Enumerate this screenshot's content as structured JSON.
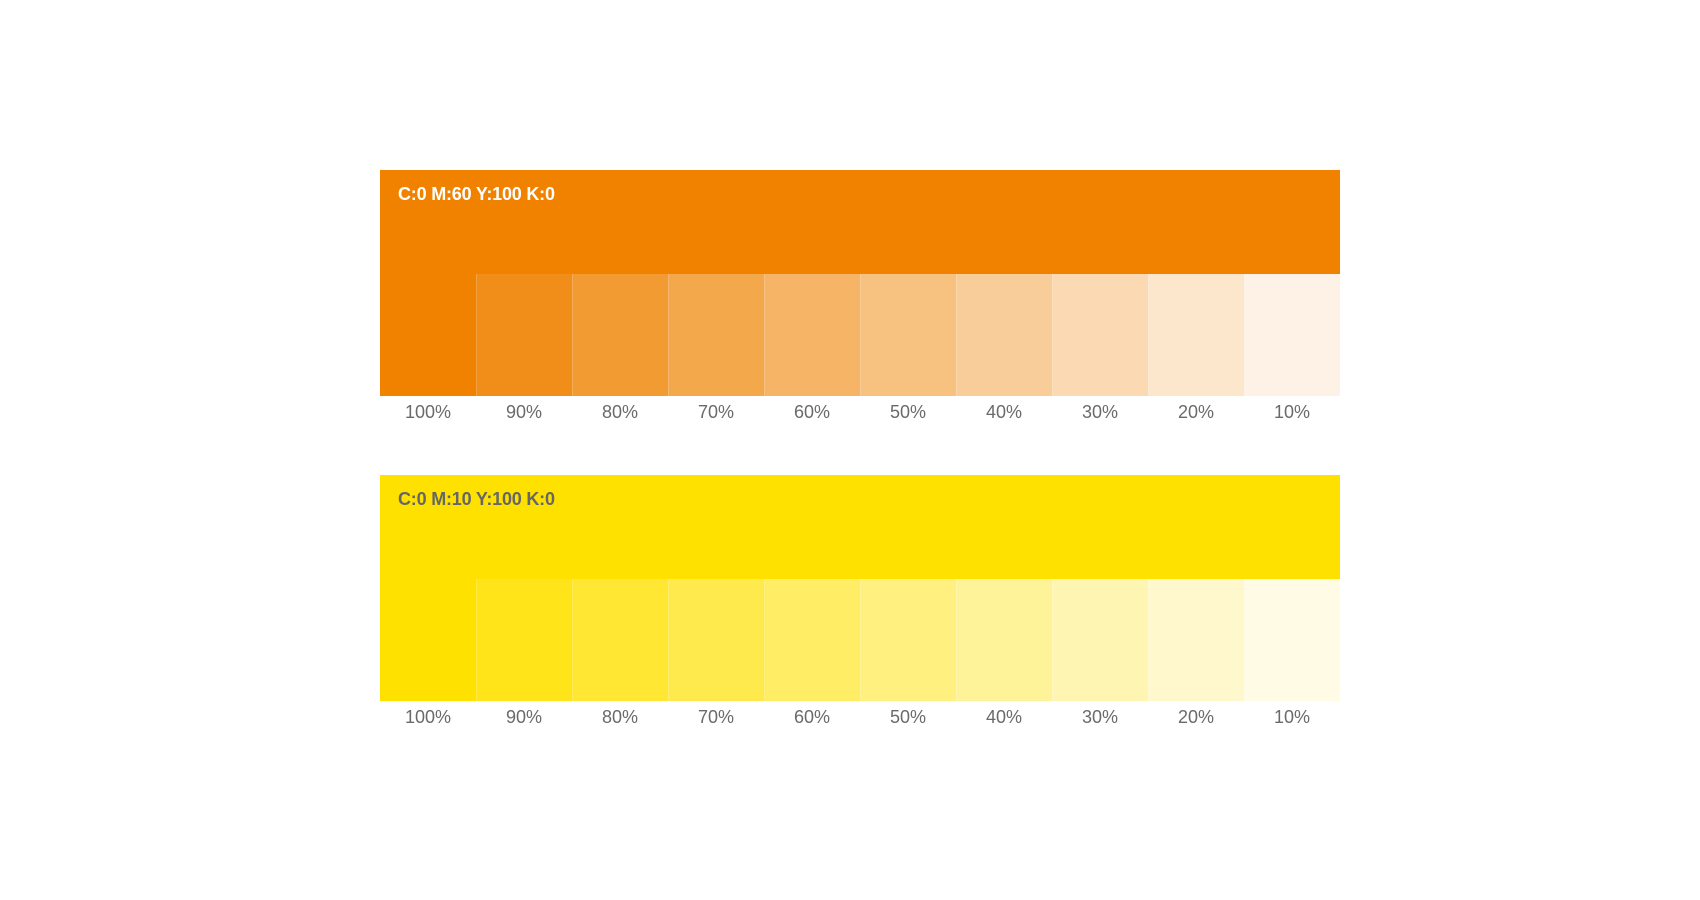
{
  "palettes": [
    {
      "id": "orange",
      "label": "C:0 M:60 Y:100 K:0",
      "base_color": "#F08200",
      "label_color": "#FFFFFF",
      "tints": [
        {
          "label": "100%",
          "color": "#F08200"
        },
        {
          "label": "90%",
          "color": "#F18E19"
        },
        {
          "label": "80%",
          "color": "#F39B33"
        },
        {
          "label": "70%",
          "color": "#F4A84C"
        },
        {
          "label": "60%",
          "color": "#F6B466"
        },
        {
          "label": "50%",
          "color": "#F7C180"
        },
        {
          "label": "40%",
          "color": "#F9CD99"
        },
        {
          "label": "30%",
          "color": "#FBDAB3"
        },
        {
          "label": "20%",
          "color": "#FCE6CC"
        },
        {
          "label": "10%",
          "color": "#FDF2E5"
        }
      ]
    },
    {
      "id": "yellow",
      "label": "C:0 M:10 Y:100 K:0",
      "base_color": "#FFE100",
      "label_color": "#666666",
      "tints": [
        {
          "label": "100%",
          "color": "#FFE100"
        },
        {
          "label": "90%",
          "color": "#FFE41A"
        },
        {
          "label": "80%",
          "color": "#FFE733"
        },
        {
          "label": "70%",
          "color": "#FFEA4D"
        },
        {
          "label": "60%",
          "color": "#FFED66"
        },
        {
          "label": "50%",
          "color": "#FFF080"
        },
        {
          "label": "40%",
          "color": "#FFF399"
        },
        {
          "label": "30%",
          "color": "#FFF5B3"
        },
        {
          "label": "20%",
          "color": "#FFF8CC"
        },
        {
          "label": "10%",
          "color": "#FFFBE5"
        }
      ]
    }
  ]
}
